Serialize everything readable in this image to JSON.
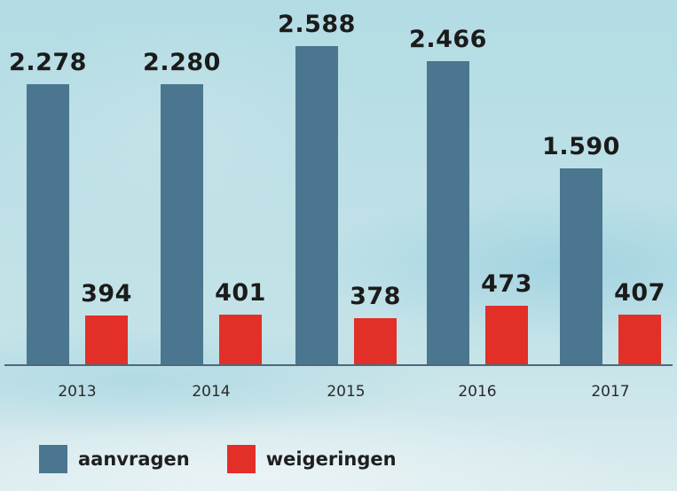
{
  "chart_data": {
    "type": "bar",
    "title": "",
    "xlabel": "",
    "ylabel": "",
    "categories": [
      "2013",
      "2014",
      "2015",
      "2016",
      "2017"
    ],
    "series": [
      {
        "name": "aanvragen",
        "color": "#4b7690",
        "values": [
          2278,
          2280,
          2588,
          2466,
          1590
        ],
        "labels": [
          "2.278",
          "2.280",
          "2.588",
          "2.466",
          "1.590"
        ]
      },
      {
        "name": "weigeringen",
        "color": "#e22f28",
        "values": [
          394,
          401,
          378,
          473,
          407
        ],
        "labels": [
          "394",
          "401",
          "378",
          "473",
          "407"
        ]
      }
    ],
    "ylim": [
      0,
      2600
    ],
    "grid": false,
    "legend_position": "bottom-left",
    "axis_visible": false,
    "data_labels": true
  },
  "legend": {
    "items": [
      {
        "label": "aanvragen",
        "color": "#4b7690"
      },
      {
        "label": "weigeringen",
        "color": "#e22f28"
      }
    ]
  }
}
